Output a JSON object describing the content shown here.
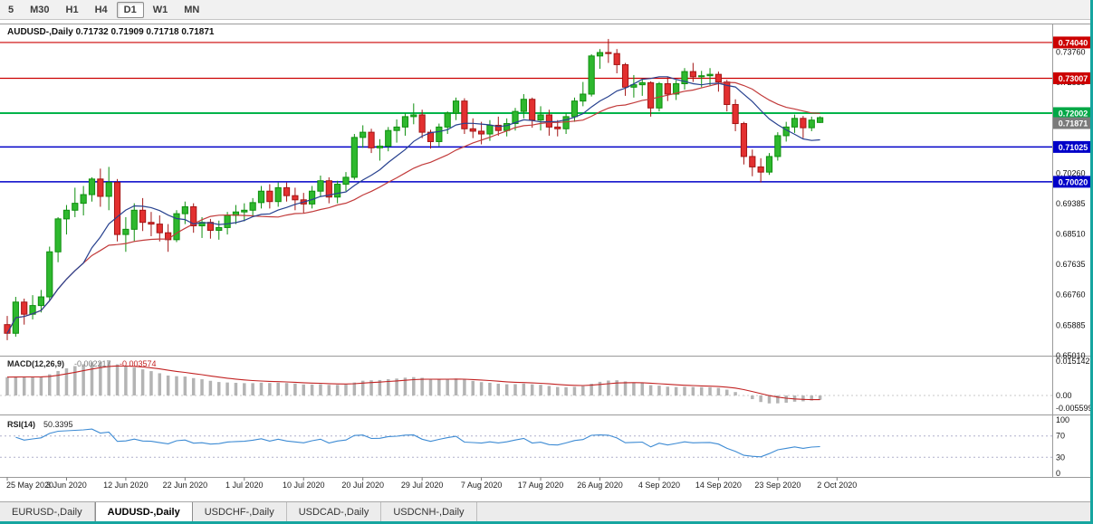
{
  "toolbar": {
    "timeframes": [
      {
        "label": "5",
        "active": false
      },
      {
        "label": "M30",
        "active": false
      },
      {
        "label": "H1",
        "active": false
      },
      {
        "label": "H4",
        "active": false
      },
      {
        "label": "D1",
        "active": true
      },
      {
        "label": "W1",
        "active": false
      },
      {
        "label": "MN",
        "active": false
      }
    ]
  },
  "tabs": {
    "items": [
      {
        "label": "EURUSD-,Daily",
        "active": false
      },
      {
        "label": "AUDUSD-,Daily",
        "active": true
      },
      {
        "label": "USDCHF-,Daily",
        "active": false
      },
      {
        "label": "USDCAD-,Daily",
        "active": false
      },
      {
        "label": "USDCNH-,Daily",
        "active": false
      }
    ]
  },
  "chart_data": {
    "type": "candlestick",
    "symbol": "AUDUSD-,Daily",
    "timeframe": "Daily",
    "ohlc": {
      "open": "0.71732",
      "high": "0.71909",
      "low": "0.71718",
      "close": "0.71871"
    },
    "price_range": [
      0.6503,
      0.7456
    ],
    "y_axis_ticks": [
      0.7376,
      0.72885,
      0.7026,
      0.69385,
      0.6851,
      0.67635,
      0.6676,
      0.65885,
      0.6501
    ],
    "x_labels": [
      "25 May 2020",
      "3 Jun 2020",
      "12 Jun 2020",
      "22 Jun 2020",
      "1 Jul 2020",
      "10 Jul 2020",
      "20 Jul 2020",
      "29 Jul 2020",
      "7 Aug 2020",
      "17 Aug 2020",
      "26 Aug 2020",
      "4 Sep 2020",
      "14 Sep 2020",
      "23 Sep 2020",
      "2 Oct 2020"
    ],
    "x_label_bar_indices": [
      0,
      7,
      14,
      21,
      28,
      35,
      42,
      49,
      56,
      63,
      70,
      77,
      84,
      91,
      98
    ],
    "colors": {
      "up": "#0e8f0e",
      "up_fill": "#2eb82e",
      "down": "#a31515",
      "down_fill": "#e33030"
    },
    "hlines": [
      {
        "price": 0.7404,
        "label": "0.74040",
        "color": "#cc0000",
        "badge": "#cc0000",
        "width": 1.2
      },
      {
        "price": 0.73007,
        "label": "0.73007",
        "color": "#cc0000",
        "badge": "#cc0000",
        "width": 1.2
      },
      {
        "price": 0.72002,
        "label": "0.72002",
        "color": "#00b44a",
        "badge": "#00a846",
        "width": 2
      },
      {
        "price": 0.71025,
        "label": "0.71025",
        "color": "#0000c8",
        "badge": "#0000c8",
        "width": 1.5
      },
      {
        "price": 0.7002,
        "label": "0.70020",
        "color": "#0000c8",
        "badge": "#0000c8",
        "width": 1.5
      }
    ],
    "current_price": {
      "value": 0.71871,
      "label": "0.71871",
      "color": "#7a7a7a"
    },
    "moving_averages": [
      {
        "period": 20,
        "color": "#c23b3b"
      },
      {
        "period": 10,
        "color": "#27418f"
      }
    ],
    "candles": [
      [
        0.659,
        0.6615,
        0.6545,
        0.6565
      ],
      [
        0.6565,
        0.667,
        0.6555,
        0.6655
      ],
      [
        0.6655,
        0.6665,
        0.659,
        0.662
      ],
      [
        0.662,
        0.6675,
        0.6605,
        0.6645
      ],
      [
        0.6645,
        0.669,
        0.6625,
        0.667
      ],
      [
        0.667,
        0.6815,
        0.666,
        0.68
      ],
      [
        0.68,
        0.69,
        0.677,
        0.6895
      ],
      [
        0.6895,
        0.6935,
        0.685,
        0.692
      ],
      [
        0.692,
        0.6985,
        0.69,
        0.694
      ],
      [
        0.694,
        0.699,
        0.6905,
        0.6965
      ],
      [
        0.6965,
        0.7015,
        0.6945,
        0.701
      ],
      [
        0.701,
        0.704,
        0.693,
        0.696
      ],
      [
        0.696,
        0.7045,
        0.692,
        0.7
      ],
      [
        0.7,
        0.701,
        0.683,
        0.685
      ],
      [
        0.685,
        0.69,
        0.68,
        0.6865
      ],
      [
        0.6865,
        0.694,
        0.683,
        0.692
      ],
      [
        0.692,
        0.6955,
        0.686,
        0.6885
      ],
      [
        0.6885,
        0.6915,
        0.6845,
        0.688
      ],
      [
        0.688,
        0.6905,
        0.683,
        0.6855
      ],
      [
        0.6855,
        0.688,
        0.68,
        0.6835
      ],
      [
        0.6835,
        0.692,
        0.6828,
        0.691
      ],
      [
        0.691,
        0.6945,
        0.688,
        0.693
      ],
      [
        0.693,
        0.694,
        0.6855,
        0.6875
      ],
      [
        0.6875,
        0.69,
        0.684,
        0.6885
      ],
      [
        0.6885,
        0.6895,
        0.6838,
        0.6862
      ],
      [
        0.6862,
        0.689,
        0.6835,
        0.687
      ],
      [
        0.687,
        0.6915,
        0.685,
        0.6905
      ],
      [
        0.6905,
        0.6935,
        0.688,
        0.6915
      ],
      [
        0.6915,
        0.694,
        0.6888,
        0.692
      ],
      [
        0.692,
        0.6955,
        0.69,
        0.6942
      ],
      [
        0.6942,
        0.699,
        0.6925,
        0.6975
      ],
      [
        0.6975,
        0.6995,
        0.6925,
        0.6945
      ],
      [
        0.6945,
        0.7,
        0.693,
        0.6985
      ],
      [
        0.6985,
        0.7,
        0.6945,
        0.6962
      ],
      [
        0.6962,
        0.6985,
        0.692,
        0.695
      ],
      [
        0.695,
        0.697,
        0.6912,
        0.6938
      ],
      [
        0.6938,
        0.699,
        0.6925,
        0.6975
      ],
      [
        0.6975,
        0.702,
        0.6958,
        0.7005
      ],
      [
        0.7005,
        0.7015,
        0.694,
        0.6958
      ],
      [
        0.6958,
        0.7005,
        0.694,
        0.6995
      ],
      [
        0.6995,
        0.703,
        0.6975,
        0.7015
      ],
      [
        0.7015,
        0.714,
        0.7008,
        0.713
      ],
      [
        0.713,
        0.7165,
        0.71,
        0.7145
      ],
      [
        0.7145,
        0.7155,
        0.7085,
        0.71
      ],
      [
        0.71,
        0.7125,
        0.7063,
        0.7105
      ],
      [
        0.7105,
        0.716,
        0.709,
        0.715
      ],
      [
        0.715,
        0.7182,
        0.7115,
        0.716
      ],
      [
        0.716,
        0.72,
        0.7135,
        0.719
      ],
      [
        0.719,
        0.7228,
        0.7168,
        0.7195
      ],
      [
        0.7195,
        0.721,
        0.7128,
        0.7145
      ],
      [
        0.7145,
        0.7152,
        0.7098,
        0.7118
      ],
      [
        0.7118,
        0.717,
        0.7105,
        0.716
      ],
      [
        0.716,
        0.7205,
        0.714,
        0.72
      ],
      [
        0.72,
        0.7245,
        0.718,
        0.7235
      ],
      [
        0.7235,
        0.7243,
        0.714,
        0.7155
      ],
      [
        0.7155,
        0.7185,
        0.7128,
        0.7148
      ],
      [
        0.7148,
        0.7175,
        0.711,
        0.714
      ],
      [
        0.714,
        0.718,
        0.712,
        0.7165
      ],
      [
        0.7165,
        0.719,
        0.7135,
        0.715
      ],
      [
        0.715,
        0.7185,
        0.7133,
        0.717
      ],
      [
        0.717,
        0.7215,
        0.715,
        0.7205
      ],
      [
        0.7205,
        0.7255,
        0.7185,
        0.724
      ],
      [
        0.724,
        0.7245,
        0.7158,
        0.718
      ],
      [
        0.718,
        0.722,
        0.715,
        0.7195
      ],
      [
        0.7195,
        0.721,
        0.7135,
        0.716
      ],
      [
        0.716,
        0.718,
        0.7133,
        0.7155
      ],
      [
        0.7155,
        0.72,
        0.714,
        0.719
      ],
      [
        0.719,
        0.7245,
        0.7175,
        0.7235
      ],
      [
        0.7235,
        0.729,
        0.722,
        0.7255
      ],
      [
        0.7255,
        0.737,
        0.7248,
        0.7365
      ],
      [
        0.7365,
        0.7385,
        0.7328,
        0.7375
      ],
      [
        0.7375,
        0.7414,
        0.7345,
        0.7372
      ],
      [
        0.7372,
        0.7385,
        0.7315,
        0.734
      ],
      [
        0.734,
        0.7345,
        0.725,
        0.7275
      ],
      [
        0.7275,
        0.731,
        0.7245,
        0.7282
      ],
      [
        0.7282,
        0.73,
        0.725,
        0.7288
      ],
      [
        0.7288,
        0.7292,
        0.719,
        0.7215
      ],
      [
        0.7215,
        0.729,
        0.7205,
        0.7285
      ],
      [
        0.7285,
        0.7305,
        0.7235,
        0.7255
      ],
      [
        0.7255,
        0.7295,
        0.7238,
        0.7285
      ],
      [
        0.7285,
        0.733,
        0.7268,
        0.732
      ],
      [
        0.732,
        0.7345,
        0.729,
        0.7305
      ],
      [
        0.7305,
        0.7322,
        0.7275,
        0.7308
      ],
      [
        0.7308,
        0.733,
        0.728,
        0.7312
      ],
      [
        0.7312,
        0.732,
        0.7262,
        0.729
      ],
      [
        0.729,
        0.7296,
        0.7205,
        0.7225
      ],
      [
        0.7225,
        0.724,
        0.7148,
        0.717
      ],
      [
        0.717,
        0.7175,
        0.7052,
        0.7075
      ],
      [
        0.7075,
        0.7095,
        0.7018,
        0.7045
      ],
      [
        0.7045,
        0.707,
        0.7,
        0.703
      ],
      [
        0.703,
        0.7085,
        0.7022,
        0.7075
      ],
      [
        0.7075,
        0.7145,
        0.7063,
        0.7135
      ],
      [
        0.7135,
        0.7175,
        0.7118,
        0.716
      ],
      [
        0.716,
        0.7196,
        0.7143,
        0.7185
      ],
      [
        0.7185,
        0.7192,
        0.7128,
        0.7158
      ],
      [
        0.7158,
        0.719,
        0.7148,
        0.718
      ],
      [
        0.71732,
        0.71909,
        0.71718,
        0.71871
      ]
    ],
    "macd": {
      "label": "MACD(12,26,9)",
      "value_main": "-0.002217",
      "value_signal": "-0.003574",
      "fast": 12,
      "slow": 26,
      "signal": 9,
      "scale_max": 0.015142,
      "scale_min": -0.005599,
      "scale_labels": [
        "0.015142",
        "0.00",
        "-0.005599"
      ],
      "histogram_color": "#b4b4b4",
      "signal_color": "#c22222"
    },
    "rsi": {
      "label": "RSI(14)",
      "value": "50.3395",
      "period": 14,
      "levels": [
        100,
        70,
        30,
        0
      ],
      "line_color": "#3d8bd4"
    }
  }
}
